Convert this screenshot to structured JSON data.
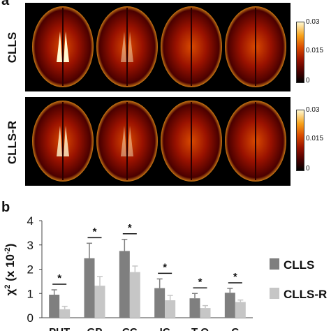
{
  "panel_a": {
    "letter": "a",
    "rows": [
      {
        "label": "CLLS",
        "colorbar": {
          "max": "0.03",
          "mid": "0.015",
          "min": "0"
        }
      },
      {
        "label": "CLLS-R",
        "colorbar": {
          "max": "0.03",
          "mid": "0.015",
          "min": "0"
        }
      }
    ],
    "slices_per_row": 4,
    "colormap": [
      "#000000",
      "#4a0000",
      "#9a1200",
      "#d94a00",
      "#f7a21a",
      "#fff8d0"
    ]
  },
  "panel_b": {
    "letter": "b"
  },
  "chart_data": {
    "type": "bar",
    "ylabel_main": "χ",
    "ylabel_sup": "2",
    "ylabel_rest": " (x 10",
    "ylabel_exp": "-2",
    "ylabel_close": ")",
    "ylim": [
      0,
      4
    ],
    "yticks": [
      "0",
      "1",
      "2",
      "3",
      "4"
    ],
    "categories": [
      "PUT",
      "GP",
      "CC",
      "IC",
      "T-O",
      "C"
    ],
    "series": [
      {
        "name": "CLLS",
        "color": "#7f7f7f",
        "values": [
          0.95,
          2.45,
          2.75,
          1.22,
          0.8,
          1.03
        ],
        "errors": [
          0.2,
          0.62,
          0.48,
          0.38,
          0.2,
          0.18
        ]
      },
      {
        "name": "CLLS-R",
        "color": "#c6c6c6",
        "values": [
          0.35,
          1.32,
          1.88,
          0.72,
          0.4,
          0.65
        ],
        "errors": [
          0.12,
          0.38,
          0.25,
          0.2,
          0.1,
          0.08
        ]
      }
    ],
    "significance": [
      "*",
      "*",
      "*",
      "*",
      "*",
      "*"
    ],
    "legend_position": "right"
  }
}
